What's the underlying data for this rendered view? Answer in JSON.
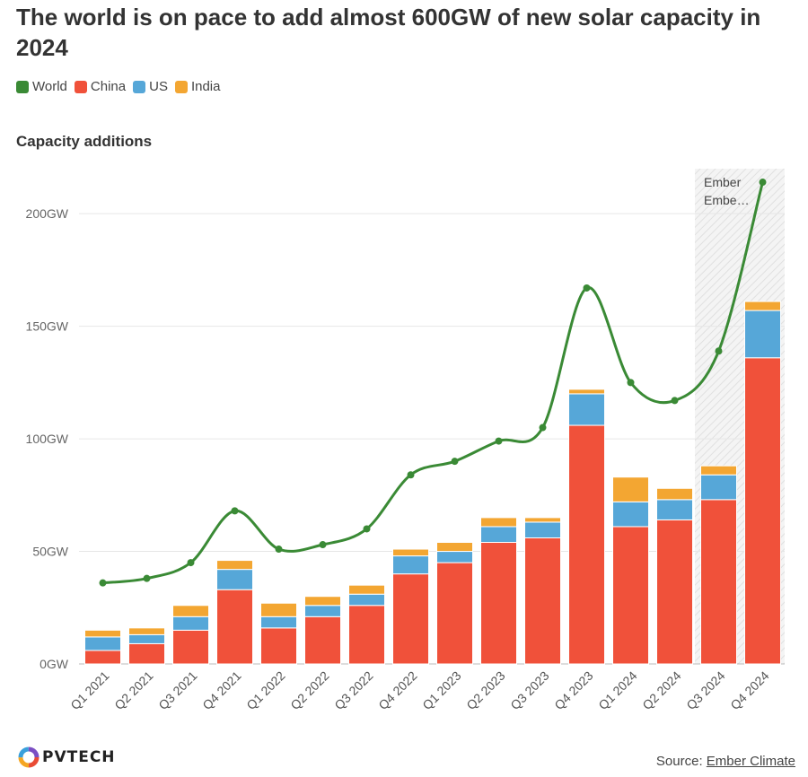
{
  "header": {
    "title": "The world is on pace to add almost 600GW of new solar capacity in 2024",
    "subtitle": "Capacity additions"
  },
  "legend": [
    {
      "label": "World",
      "color": "#3a8a35"
    },
    {
      "label": "China",
      "color": "#f0513a"
    },
    {
      "label": "US",
      "color": "#56a7d8"
    },
    {
      "label": "India",
      "color": "#f3a632"
    }
  ],
  "chart_data": {
    "type": "bar",
    "subtype": "stacked bar with line overlay",
    "title": "The world is on pace to add almost 600GW of new solar capacity in 2024",
    "subtitle": "Capacity additions",
    "categories": [
      "Q1 2021",
      "Q2 2021",
      "Q3 2021",
      "Q4 2021",
      "Q1 2022",
      "Q2 2022",
      "Q3 2022",
      "Q4 2022",
      "Q1 2023",
      "Q2 2023",
      "Q3 2023",
      "Q4 2023",
      "Q1 2024",
      "Q2 2024",
      "Q3 2024",
      "Q4 2024"
    ],
    "series": [
      {
        "name": "China",
        "type": "bar",
        "color": "#f0513a",
        "values": [
          6,
          9,
          15,
          33,
          16,
          21,
          26,
          40,
          45,
          54,
          56,
          106,
          61,
          64,
          73,
          136
        ]
      },
      {
        "name": "US",
        "type": "bar",
        "color": "#56a7d8",
        "values": [
          6,
          4,
          6,
          9,
          5,
          5,
          5,
          8,
          5,
          7,
          7,
          14,
          11,
          9,
          11,
          21
        ]
      },
      {
        "name": "India",
        "type": "bar",
        "color": "#f3a632",
        "values": [
          3,
          3,
          5,
          4,
          6,
          4,
          4,
          3,
          4,
          4,
          2,
          2,
          11,
          5,
          4,
          4
        ]
      },
      {
        "name": "World",
        "type": "line",
        "color": "#3a8a35",
        "values": [
          36,
          38,
          45,
          68,
          51,
          53,
          60,
          84,
          90,
          99,
          105,
          167,
          125,
          117,
          139,
          214
        ]
      }
    ],
    "ylim": [
      0,
      220
    ],
    "yticks": [
      0,
      50,
      100,
      150,
      200
    ],
    "ytick_labels": [
      "0GW",
      "50GW",
      "100GW",
      "150GW",
      "200GW"
    ],
    "projected_categories": [
      "Q3 2024",
      "Q4 2024"
    ],
    "annotation": {
      "line1": "Ember",
      "line2": "Embe…"
    },
    "xlabel": "",
    "ylabel": ""
  },
  "footer": {
    "logo_text": "PVTECH",
    "source_prefix": "Source: ",
    "source_link": "Ember Climate"
  }
}
